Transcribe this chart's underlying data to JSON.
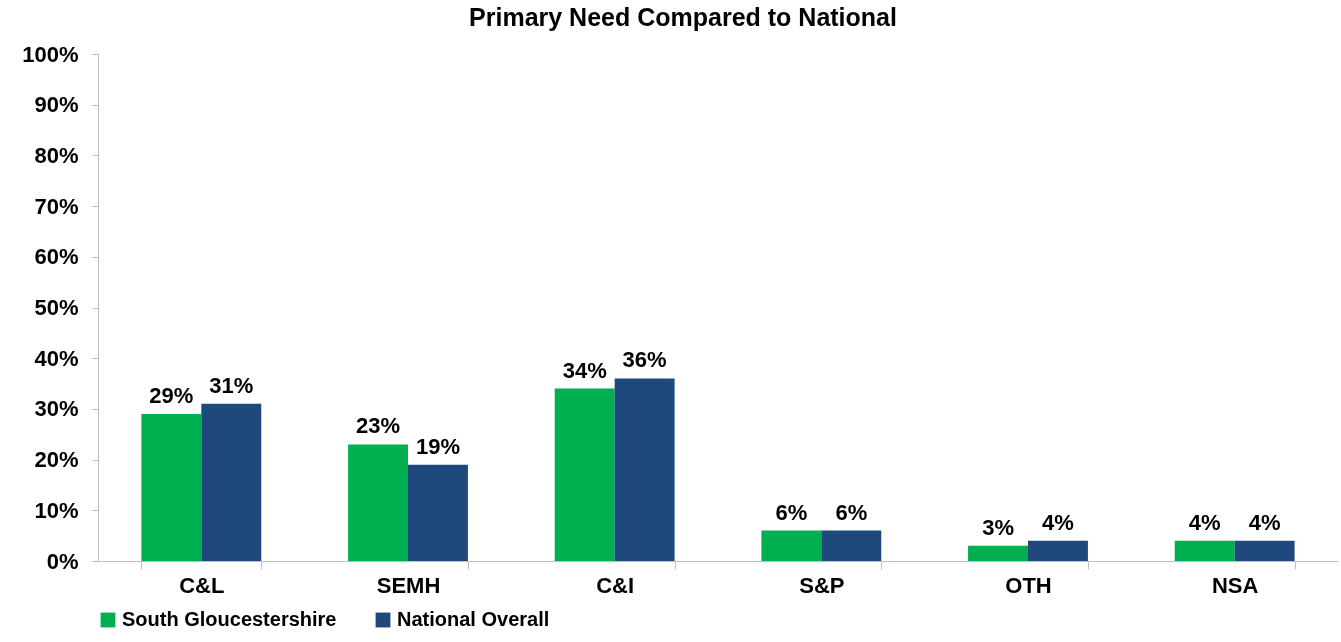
{
  "chart_data": {
    "type": "bar",
    "title": "Primary Need Compared to National",
    "categories": [
      "C&L",
      "SEMH",
      "C&I",
      "S&P",
      "OTH",
      "NSA"
    ],
    "series": [
      {
        "name": "South Gloucestershire",
        "color": "#00b050",
        "values": [
          29,
          23,
          34,
          6,
          3,
          4
        ],
        "value_labels": [
          "29%",
          "23%",
          "34%",
          "6%",
          "3%",
          "4%"
        ]
      },
      {
        "name": "National Overall",
        "color": "#1f497d",
        "values": [
          31,
          19,
          36,
          6,
          4,
          4
        ],
        "value_labels": [
          "31%",
          "19%",
          "36%",
          "6%",
          "4%",
          "4%"
        ]
      }
    ],
    "ylim": [
      0,
      100
    ],
    "yticks": [
      {
        "value": 0,
        "label": "0%"
      },
      {
        "value": 10,
        "label": "10%"
      },
      {
        "value": 20,
        "label": "20%"
      },
      {
        "value": 30,
        "label": "30%"
      },
      {
        "value": 40,
        "label": "40%"
      },
      {
        "value": 50,
        "label": "50%"
      },
      {
        "value": 60,
        "label": "60%"
      },
      {
        "value": 70,
        "label": "70%"
      },
      {
        "value": 80,
        "label": "80%"
      },
      {
        "value": 90,
        "label": "90%"
      },
      {
        "value": 100,
        "label": "100%"
      }
    ],
    "legend": "bottom"
  }
}
